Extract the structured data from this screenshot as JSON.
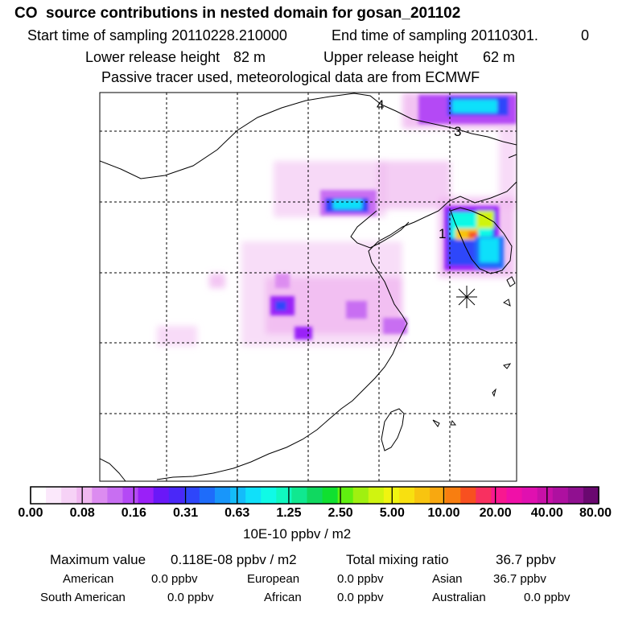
{
  "header": {
    "title": "CO  source contributions in nested domain for gosan_201102",
    "start_label": "Start time of sampling 20110228.210000",
    "end_label": "End time of sampling 20110301.",
    "end_suffix": "0",
    "lower_label": "Lower release height",
    "lower_value": "82 m",
    "upper_label": "Upper release height",
    "upper_value": "62 m",
    "tracer_note": "Passive tracer used, meteorological data are from ECMWF"
  },
  "map": {
    "markers": [
      {
        "label": "1"
      },
      {
        "label": "3"
      },
      {
        "label": "4"
      }
    ],
    "receptor_symbol": "asterisk"
  },
  "colorbar": {
    "colors": [
      "#ffffff",
      "#fbe8fb",
      "#f6d2f6",
      "#f0b8f0",
      "#dc8cf0",
      "#c86ef2",
      "#b449f5",
      "#9a20f8",
      "#6a18f8",
      "#4a28f8",
      "#2e46fa",
      "#1e6cfa",
      "#1896fa",
      "#14bcfa",
      "#10e0fa",
      "#10fae6",
      "#10f8c0",
      "#10e890",
      "#10d860",
      "#10e030",
      "#60f010",
      "#a0f010",
      "#d0f410",
      "#f0f410",
      "#f8e010",
      "#f8c410",
      "#f8a810",
      "#f87e10",
      "#f85020",
      "#f83060",
      "#f81890",
      "#f010a8",
      "#e010b0",
      "#c810a8",
      "#ae10a0",
      "#901090",
      "#6a0870"
    ],
    "labels": [
      "0.00",
      "0.08",
      "0.16",
      "0.31",
      "0.63",
      "1.25",
      "2.50",
      "5.00",
      "10.00",
      "20.00",
      "40.00",
      "80.00"
    ],
    "units": "10E-10 ppbv / m2"
  },
  "summary": {
    "max_label": "Maximum value",
    "max_value": "0.118E-08 ppbv / m2",
    "total_label": "Total mixing ratio",
    "total_value": "36.7 ppbv",
    "regions": [
      {
        "name": "American",
        "value": "0.0 ppbv"
      },
      {
        "name": "European",
        "value": "0.0 ppbv"
      },
      {
        "name": "Asian",
        "value": "36.7 ppbv"
      },
      {
        "name": "South American",
        "value": "0.0 ppbv"
      },
      {
        "name": "African",
        "value": "0.0 ppbv"
      },
      {
        "name": "Australian",
        "value": "0.0 ppbv"
      }
    ]
  }
}
